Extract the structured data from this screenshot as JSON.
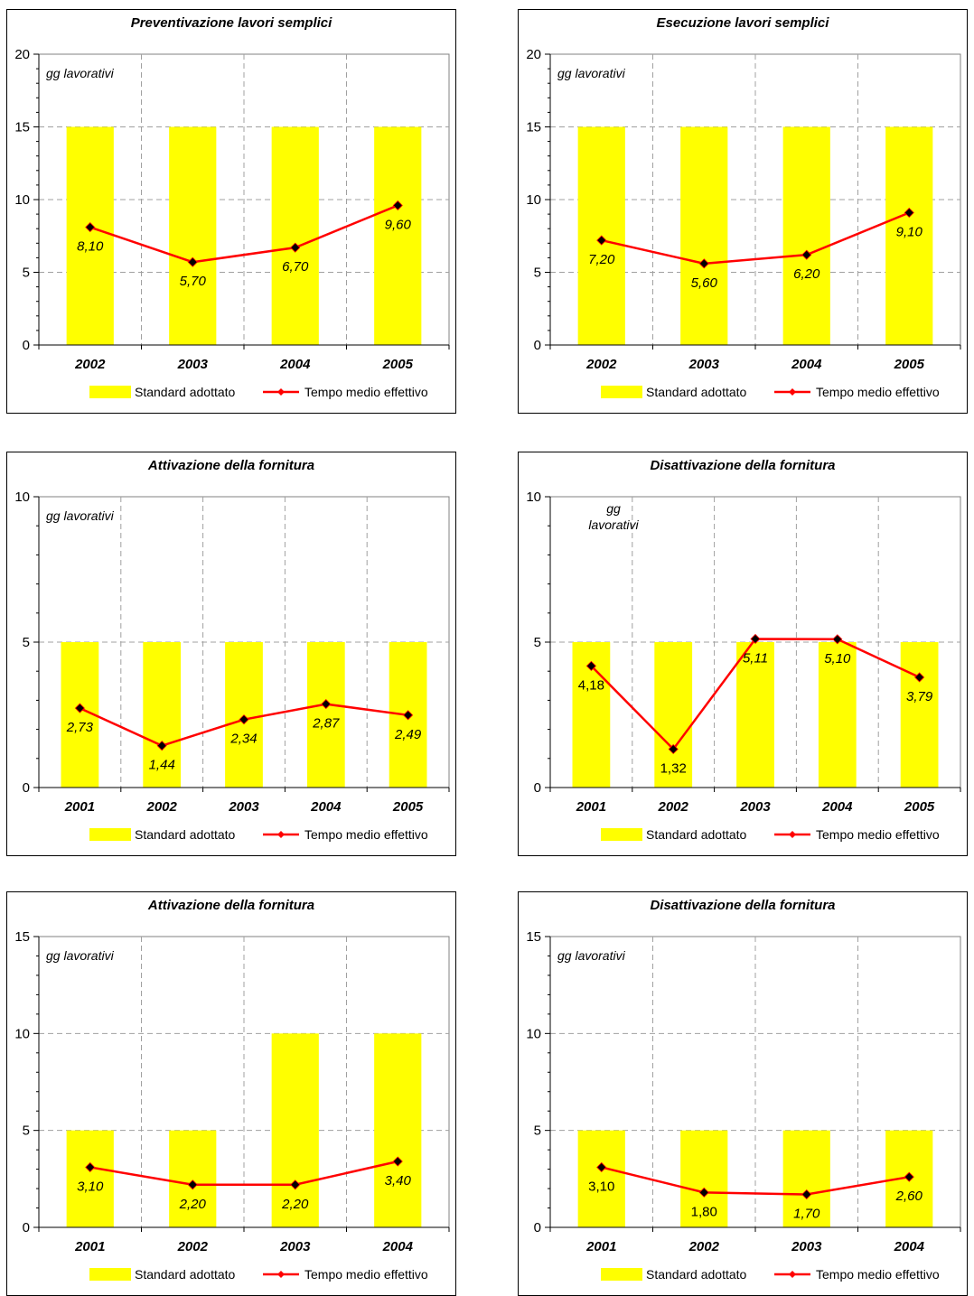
{
  "chart_data": [
    {
      "type": "bar",
      "title": "Preventivazione lavori semplici",
      "unit_label": [
        "gg lavorativi"
      ],
      "ylim": [
        0,
        20
      ],
      "yticks": [
        0,
        5,
        10,
        15,
        20
      ],
      "minor_ticks": 5,
      "grid": true,
      "legend_position": "bottom",
      "categories": [
        "2002",
        "2003",
        "2004",
        "2005"
      ],
      "series": [
        {
          "name": "Standard adottato",
          "kind": "bar",
          "color": "#ffff00",
          "values": [
            15,
            15,
            15,
            15
          ]
        },
        {
          "name": "Tempo medio effettivo",
          "kind": "line",
          "color": "#ff0000",
          "values": [
            8.1,
            5.7,
            6.7,
            9.6
          ],
          "labels": [
            "8,10",
            "5,70",
            "6,70",
            "9,60"
          ],
          "label_italic": [
            true,
            true,
            true,
            true
          ]
        }
      ]
    },
    {
      "type": "bar",
      "title": "Esecuzione lavori semplici",
      "unit_label": [
        "gg lavorativi"
      ],
      "ylim": [
        0,
        20
      ],
      "yticks": [
        0,
        5,
        10,
        15,
        20
      ],
      "minor_ticks": 5,
      "grid": true,
      "legend_position": "bottom",
      "categories": [
        "2002",
        "2003",
        "2004",
        "2005"
      ],
      "series": [
        {
          "name": "Standard adottato",
          "kind": "bar",
          "color": "#ffff00",
          "values": [
            15,
            15,
            15,
            15
          ]
        },
        {
          "name": "Tempo medio effettivo",
          "kind": "line",
          "color": "#ff0000",
          "values": [
            7.2,
            5.6,
            6.2,
            9.1
          ],
          "labels": [
            "7,20",
            "5,60",
            "6,20",
            "9,10"
          ],
          "label_italic": [
            true,
            true,
            true,
            true
          ]
        }
      ]
    },
    {
      "type": "bar",
      "title": "Attivazione della fornitura",
      "unit_label": [
        "gg lavorativi"
      ],
      "ylim": [
        0,
        10
      ],
      "yticks": [
        0,
        5,
        10
      ],
      "minor_ticks": 5,
      "grid": true,
      "legend_position": "bottom",
      "categories": [
        "2001",
        "2002",
        "2003",
        "2004",
        "2005"
      ],
      "series": [
        {
          "name": "Standard adottato",
          "kind": "bar",
          "color": "#ffff00",
          "values": [
            5,
            5,
            5,
            5,
            5
          ]
        },
        {
          "name": "Tempo medio effettivo",
          "kind": "line",
          "color": "#ff0000",
          "values": [
            2.73,
            1.44,
            2.34,
            2.87,
            2.49
          ],
          "labels": [
            "2,73",
            "1,44",
            "2,34",
            "2,87",
            "2,49"
          ],
          "label_italic": [
            true,
            true,
            true,
            true,
            true
          ]
        }
      ]
    },
    {
      "type": "bar",
      "title": "Disattivazione della fornitura",
      "unit_label": [
        "gg",
        "lavorativi"
      ],
      "ylim": [
        0,
        10
      ],
      "yticks": [
        0,
        5,
        10
      ],
      "minor_ticks": 5,
      "grid": true,
      "legend_position": "bottom",
      "categories": [
        "2001",
        "2002",
        "2003",
        "2004",
        "2005"
      ],
      "series": [
        {
          "name": "Standard adottato",
          "kind": "bar",
          "color": "#ffff00",
          "values": [
            5,
            5,
            5,
            5,
            5
          ]
        },
        {
          "name": "Tempo medio effettivo",
          "kind": "line",
          "color": "#ff0000",
          "values": [
            4.18,
            1.32,
            5.11,
            5.1,
            3.79
          ],
          "labels": [
            "4,18",
            "1,32",
            "5,11",
            "5,10",
            "3,79"
          ],
          "label_italic": [
            false,
            false,
            true,
            true,
            true
          ]
        }
      ]
    },
    {
      "type": "bar",
      "title": "Attivazione della fornitura",
      "unit_label": [
        "gg lavorativi"
      ],
      "ylim": [
        0,
        15
      ],
      "yticks": [
        0,
        5,
        10,
        15
      ],
      "minor_ticks": 5,
      "grid": true,
      "legend_position": "bottom",
      "categories": [
        "2001",
        "2002",
        "2003",
        "2004"
      ],
      "series": [
        {
          "name": "Standard adottato",
          "kind": "bar",
          "color": "#ffff00",
          "values": [
            5,
            5,
            10,
            10
          ]
        },
        {
          "name": "Tempo medio effettivo",
          "kind": "line",
          "color": "#ff0000",
          "values": [
            3.1,
            2.2,
            2.2,
            3.4
          ],
          "labels": [
            "3,10",
            "2,20",
            "2,20",
            "3,40"
          ],
          "label_italic": [
            true,
            true,
            true,
            true
          ]
        }
      ]
    },
    {
      "type": "bar",
      "title": "Disattivazione della fornitura",
      "unit_label": [
        "gg lavorativi"
      ],
      "ylim": [
        0,
        15
      ],
      "yticks": [
        0,
        5,
        10,
        15
      ],
      "minor_ticks": 5,
      "grid": true,
      "legend_position": "bottom",
      "categories": [
        "2001",
        "2002",
        "2003",
        "2004"
      ],
      "series": [
        {
          "name": "Standard adottato",
          "kind": "bar",
          "color": "#ffff00",
          "values": [
            5,
            5,
            5,
            5
          ]
        },
        {
          "name": "Tempo medio effettivo",
          "kind": "line",
          "color": "#ff0000",
          "values": [
            3.1,
            1.8,
            1.7,
            2.6
          ],
          "labels": [
            "3,10",
            "1,80",
            "1,70",
            "2,60"
          ],
          "label_italic": [
            false,
            false,
            true,
            true
          ]
        }
      ]
    }
  ]
}
